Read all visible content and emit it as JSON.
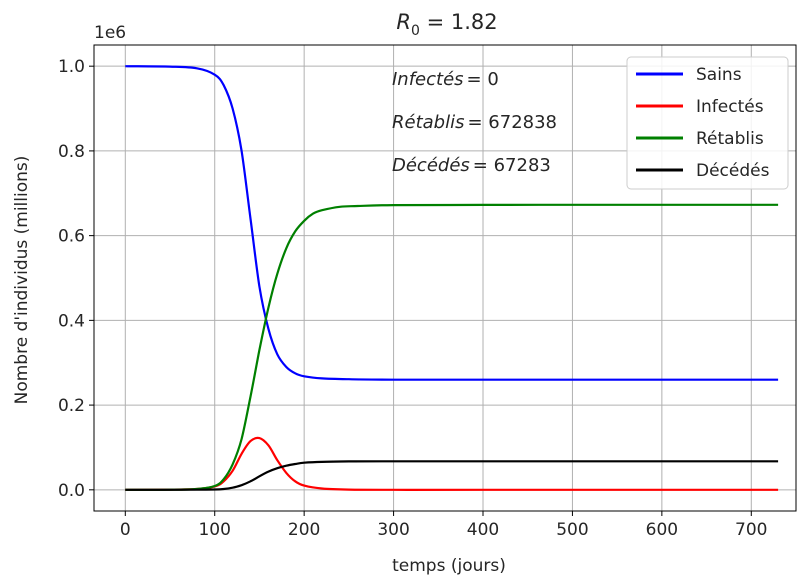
{
  "chart_data": {
    "type": "line",
    "title_main": "R",
    "title_sub": "0",
    "title_rest": " = 1.82",
    "xlabel": "temps (jours)",
    "ylabel": "Nombre d'individus (millions)",
    "y_offset_label": "1e6",
    "xlim": [
      -35,
      750
    ],
    "ylim": [
      -50000,
      1050000
    ],
    "xticks": [
      0,
      100,
      200,
      300,
      400,
      500,
      600,
      700
    ],
    "xtick_labels": [
      "0",
      "100",
      "200",
      "300",
      "400",
      "500",
      "600",
      "700"
    ],
    "yticks": [
      0,
      200000,
      400000,
      600000,
      800000,
      1000000
    ],
    "ytick_labels": [
      "0.0",
      "0.2",
      "0.4",
      "0.6",
      "0.8",
      "1.0"
    ],
    "grid": true,
    "legend_position": "top-right",
    "annotations": [
      {
        "label": "Infectés",
        "value": "= 0"
      },
      {
        "label": "Rétablis",
        "value": "= 672838"
      },
      {
        "label": "Décédés",
        "value": "= 67283"
      }
    ],
    "series": [
      {
        "name": "Sains",
        "color": "#0000ff",
        "x": [
          0,
          50,
          80,
          100,
          110,
          120,
          130,
          140,
          150,
          160,
          170,
          180,
          190,
          200,
          220,
          250,
          300,
          400,
          500,
          600,
          730
        ],
        "y": [
          1000000,
          999000,
          995000,
          980000,
          955000,
          900000,
          800000,
          640000,
          480000,
          380000,
          320000,
          290000,
          275000,
          268000,
          263000,
          261000,
          260000,
          260000,
          260000,
          260000,
          260000
        ]
      },
      {
        "name": "Infectés",
        "color": "#ff0000",
        "x": [
          0,
          50,
          80,
          100,
          110,
          120,
          130,
          140,
          150,
          160,
          170,
          180,
          190,
          200,
          220,
          250,
          300,
          400,
          730
        ],
        "y": [
          0,
          500,
          2000,
          8000,
          20000,
          45000,
          85000,
          115000,
          122000,
          105000,
          70000,
          40000,
          20000,
          10000,
          3000,
          500,
          0,
          0,
          0
        ]
      },
      {
        "name": "Rétablis",
        "color": "#008000",
        "x": [
          0,
          50,
          80,
          100,
          110,
          120,
          130,
          140,
          150,
          160,
          170,
          180,
          190,
          200,
          210,
          220,
          240,
          260,
          300,
          400,
          500,
          600,
          730
        ],
        "y": [
          0,
          200,
          2000,
          9000,
          25000,
          60000,
          120000,
          220000,
          330000,
          430000,
          510000,
          570000,
          610000,
          635000,
          652000,
          660000,
          668000,
          670000,
          672000,
          672500,
          672838,
          672838,
          672838
        ]
      },
      {
        "name": "Décédés",
        "color": "#000000",
        "x": [
          0,
          50,
          80,
          100,
          110,
          120,
          130,
          140,
          150,
          160,
          170,
          180,
          190,
          200,
          220,
          250,
          300,
          400,
          500,
          600,
          730
        ],
        "y": [
          0,
          20,
          200,
          800,
          2000,
          5000,
          11000,
          20000,
          32000,
          43000,
          51000,
          57000,
          61000,
          64000,
          66000,
          67000,
          67200,
          67283,
          67283,
          67283,
          67283
        ]
      }
    ]
  }
}
